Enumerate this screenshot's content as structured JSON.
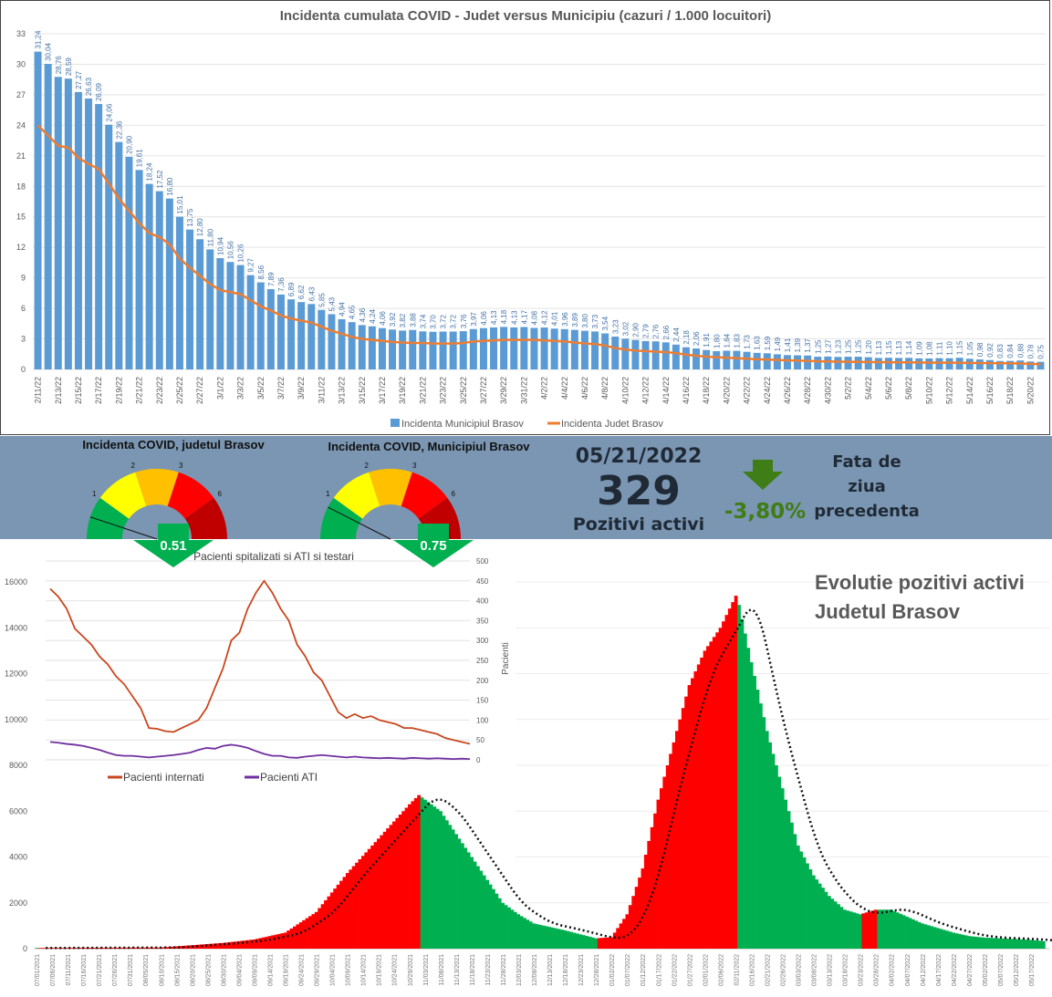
{
  "colors": {
    "bar": "#5b9bd5",
    "line": "#ed7d31",
    "band": "#7b96b2",
    "rise": "#ff0000",
    "fall": "#00b050",
    "internati": "#c9471f",
    "ati": "#7030a0",
    "arrow": "#00b050",
    "kpi_down": "#3f7d16"
  },
  "chart_data": [
    {
      "type": "bar",
      "title": "Incidenta cumulata COVID - Judet versus Municipiu (cazuri / 1.000 locuitori)",
      "ylim": [
        0,
        33
      ],
      "yticks": [
        "0",
        "3",
        "6",
        "9",
        "12",
        "15",
        "18",
        "21",
        "24",
        "27",
        "30",
        "33"
      ],
      "x_tick_labels": [
        "2/11/22",
        "2/13/22",
        "2/15/22",
        "2/17/22",
        "2/19/22",
        "2/21/22",
        "2/23/22",
        "2/25/22",
        "2/27/22",
        "3/1/22",
        "3/3/22",
        "3/5/22",
        "3/7/22",
        "3/9/22",
        "3/11/22",
        "3/13/22",
        "3/15/22",
        "3/17/22",
        "3/19/22",
        "3/21/22",
        "3/23/22",
        "3/25/22",
        "3/27/22",
        "3/29/22",
        "3/31/22",
        "4/2/22",
        "4/4/22",
        "4/6/22",
        "4/8/22",
        "4/10/22",
        "4/12/22",
        "4/14/22",
        "4/16/22",
        "4/18/22",
        "4/20/22",
        "4/22/22",
        "4/24/22",
        "4/26/22",
        "4/28/22",
        "4/30/22",
        "5/2/22",
        "5/4/22",
        "5/6/22",
        "5/8/22",
        "5/10/22",
        "5/12/22",
        "5/14/22",
        "5/16/22",
        "5/18/22",
        "5/20/22"
      ],
      "series": [
        {
          "name": "Incidenta Municipiul Brasov",
          "type": "bar",
          "values": [
            31.24,
            30.04,
            28.76,
            28.59,
            27.27,
            26.63,
            26.09,
            24.06,
            22.36,
            20.9,
            19.61,
            18.24,
            17.52,
            16.8,
            15.01,
            13.75,
            12.8,
            11.8,
            10.94,
            10.56,
            10.26,
            9.27,
            8.56,
            7.89,
            7.36,
            6.89,
            6.62,
            6.43,
            5.85,
            5.43,
            4.94,
            4.65,
            4.36,
            4.24,
            4.06,
            3.92,
            3.82,
            3.88,
            3.74,
            3.7,
            3.72,
            3.72,
            3.76,
            3.97,
            4.06,
            4.13,
            4.18,
            4.13,
            4.17,
            4.08,
            4.12,
            4.01,
            3.96,
            3.89,
            3.8,
            3.73,
            3.54,
            3.23,
            3.02,
            2.9,
            2.79,
            2.76,
            2.66,
            2.44,
            2.18,
            2.06,
            1.91,
            1.8,
            1.84,
            1.83,
            1.73,
            1.63,
            1.59,
            1.49,
            1.41,
            1.39,
            1.37,
            1.25,
            1.27,
            1.23,
            1.25,
            1.25,
            1.2,
            1.13,
            1.15,
            1.13,
            1.14,
            1.09,
            1.08,
            1.11,
            1.1,
            1.15,
            1.05,
            0.98,
            0.92,
            0.83,
            0.84,
            0.88,
            0.78,
            0.75
          ]
        },
        {
          "name": "Incidenta Judet Brasov",
          "type": "line",
          "values": [
            24.0,
            23.0,
            22.0,
            21.8,
            20.8,
            20.2,
            19.7,
            18.3,
            16.8,
            15.6,
            14.4,
            13.4,
            13.0,
            12.3,
            10.9,
            10.0,
            9.2,
            8.4,
            7.8,
            7.6,
            7.4,
            6.8,
            6.2,
            5.8,
            5.3,
            5.0,
            4.8,
            4.6,
            4.2,
            3.8,
            3.5,
            3.2,
            3.0,
            2.9,
            2.8,
            2.7,
            2.65,
            2.6,
            2.6,
            2.55,
            2.55,
            2.55,
            2.6,
            2.75,
            2.8,
            2.85,
            2.9,
            2.9,
            2.9,
            2.9,
            2.85,
            2.8,
            2.75,
            2.65,
            2.55,
            2.5,
            2.35,
            2.1,
            1.95,
            1.85,
            1.8,
            1.75,
            1.7,
            1.6,
            1.45,
            1.35,
            1.25,
            1.2,
            1.15,
            1.1,
            1.05,
            1.0,
            0.97,
            0.93,
            0.9,
            0.87,
            0.84,
            0.8,
            0.78,
            0.76,
            0.75,
            0.74,
            0.73,
            0.72,
            0.71,
            0.7,
            0.69,
            0.68,
            0.67,
            0.66,
            0.66,
            0.65,
            0.64,
            0.63,
            0.62,
            0.61,
            0.6,
            0.58,
            0.55,
            0.51
          ]
        }
      ],
      "legend": "bottom"
    },
    {
      "type": "bar",
      "title": "Evolutie pozitivi activi",
      "subtitle": "Judetul Brasov",
      "ylim": [
        0,
        16000
      ],
      "yticks": [
        "0",
        "2000",
        "4000",
        "6000",
        "8000",
        "10000",
        "12000",
        "14000",
        "16000"
      ],
      "x_tick_labels": [
        "07/01/2021",
        "07/06/2021",
        "07/11/2021",
        "07/16/2021",
        "07/21/2021",
        "07/26/2021",
        "07/31/2021",
        "08/05/2021",
        "08/10/2021",
        "08/15/2021",
        "08/20/2021",
        "08/25/2021",
        "08/30/2021",
        "09/04/2021",
        "09/09/2021",
        "09/14/2021",
        "09/19/2021",
        "09/24/2021",
        "09/29/2021",
        "10/04/2021",
        "10/09/2021",
        "10/14/2021",
        "10/19/2021",
        "10/24/2021",
        "10/29/2021",
        "11/03/2021",
        "11/08/2021",
        "11/13/2021",
        "11/18/2021",
        "11/23/2021",
        "11/28/2021",
        "12/03/2021",
        "12/08/2021",
        "12/13/2021",
        "12/18/2021",
        "12/23/2021",
        "12/28/2021",
        "01/02/2022",
        "01/07/2022",
        "01/12/2022",
        "01/17/2022",
        "01/22/2022",
        "01/27/2022",
        "02/01/2022",
        "02/06/2022",
        "02/11/2022",
        "02/16/2022",
        "02/21/2022",
        "02/26/2022",
        "03/03/2022",
        "03/08/2022",
        "03/13/2022",
        "03/18/2022",
        "03/23/2022",
        "03/28/2022",
        "04/02/2022",
        "04/07/2022",
        "04/12/2022",
        "04/17/2022",
        "04/22/2022",
        "04/27/2022",
        "05/02/2022",
        "05/07/2022",
        "05/12/2022",
        "05/17/2022"
      ],
      "samples_day_value": [
        [
          0,
          30
        ],
        [
          40,
          50
        ],
        [
          50,
          150
        ],
        [
          60,
          250
        ],
        [
          70,
          400
        ],
        [
          80,
          700
        ],
        [
          90,
          1600
        ],
        [
          100,
          3300
        ],
        [
          110,
          4800
        ],
        [
          120,
          6300
        ],
        [
          123,
          6700
        ],
        [
          130,
          6000
        ],
        [
          135,
          5000
        ],
        [
          140,
          4000
        ],
        [
          145,
          3000
        ],
        [
          150,
          2000
        ],
        [
          155,
          1500
        ],
        [
          160,
          1100
        ],
        [
          170,
          800
        ],
        [
          180,
          450
        ],
        [
          185,
          500
        ],
        [
          190,
          1500
        ],
        [
          195,
          3500
        ],
        [
          200,
          6500
        ],
        [
          205,
          9000
        ],
        [
          210,
          11500
        ],
        [
          215,
          13000
        ],
        [
          220,
          14000
        ],
        [
          225,
          15400
        ],
        [
          226,
          15000
        ],
        [
          230,
          12500
        ],
        [
          235,
          9500
        ],
        [
          240,
          7000
        ],
        [
          245,
          4500
        ],
        [
          250,
          3200
        ],
        [
          255,
          2300
        ],
        [
          260,
          1700
        ],
        [
          265,
          1500
        ],
        [
          270,
          1700
        ],
        [
          275,
          1700
        ],
        [
          280,
          1400
        ],
        [
          285,
          1100
        ],
        [
          290,
          900
        ],
        [
          295,
          700
        ],
        [
          300,
          550
        ],
        [
          305,
          480
        ],
        [
          310,
          450
        ],
        [
          315,
          420
        ],
        [
          320,
          380
        ],
        [
          324,
          329
        ]
      ],
      "series_notes": "bars red when rising, green when falling; dotted trend line"
    },
    {
      "type": "line",
      "title": "Pacienti spitalizati si ATI si testari",
      "ylabel_right": "Pacienti",
      "ylim_right": [
        0,
        500
      ],
      "yticks_right": [
        "0",
        "50",
        "100",
        "150",
        "200",
        "250",
        "300",
        "350",
        "400",
        "450",
        "500"
      ],
      "series": [
        {
          "name": "Pacienti internati",
          "values": [
            430,
            410,
            380,
            330,
            310,
            290,
            260,
            240,
            210,
            190,
            160,
            130,
            80,
            78,
            72,
            70,
            80,
            90,
            100,
            130,
            180,
            230,
            300,
            320,
            380,
            420,
            450,
            420,
            380,
            350,
            290,
            260,
            220,
            200,
            160,
            120,
            105,
            115,
            105,
            110,
            100,
            95,
            90,
            80,
            80,
            75,
            70,
            65,
            55,
            50,
            45,
            40
          ]
        },
        {
          "name": "Pacienti ATI",
          "values": [
            45,
            43,
            40,
            38,
            35,
            30,
            25,
            18,
            12,
            10,
            10,
            8,
            6,
            8,
            10,
            12,
            15,
            18,
            25,
            30,
            28,
            35,
            38,
            35,
            30,
            22,
            15,
            10,
            10,
            6,
            5,
            8,
            10,
            12,
            10,
            8,
            6,
            8,
            6,
            5,
            4,
            5,
            4,
            3,
            5,
            4,
            3,
            4,
            3,
            2,
            3,
            2
          ]
        }
      ],
      "legend": "bottom"
    }
  ],
  "gauges": [
    {
      "title": "Incidenta COVID, judetul Brasov",
      "value": 0.51,
      "value_label": "0.51",
      "thresholds": [
        "1",
        "2",
        "3",
        "6"
      ]
    },
    {
      "title": "Incidenta COVID, Municipiul Brasov",
      "value": 0.75,
      "value_label": "0.75",
      "thresholds": [
        "1",
        "2",
        "3",
        "6"
      ]
    }
  ],
  "kpi": {
    "date": "05/21/2022",
    "count": "329",
    "count_label": "Pozitivi activi",
    "change": "-3,80%",
    "change_label_1": "Fata de",
    "change_label_2": "ziua",
    "change_label_3": "precedenta"
  }
}
